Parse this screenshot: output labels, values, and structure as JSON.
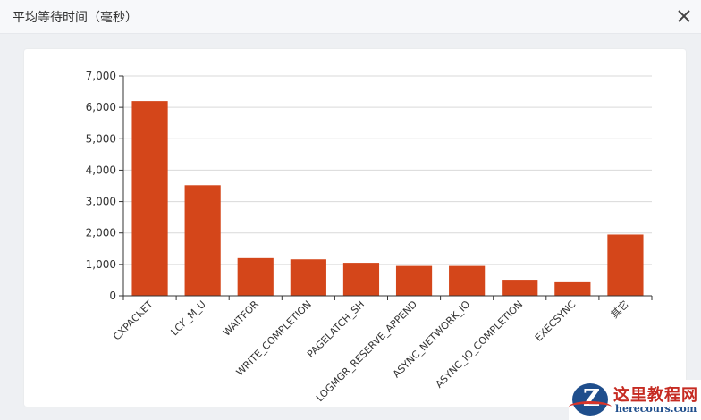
{
  "dialog": {
    "title": "平均等待时间（毫秒）"
  },
  "watermark": {
    "brand": "这里教程网",
    "url": "herecours.com"
  },
  "colors": {
    "bar": "#d4461a",
    "grid": "#d9d9d9",
    "axis": "#333333"
  },
  "chart_data": {
    "type": "bar",
    "title": "平均等待时间（毫秒）",
    "categories": [
      "CXPACKET",
      "LCK_M_U",
      "WAITFOR",
      "WRITE_COMPLETION",
      "PAGELATCH_SH",
      "LOGMGR_RESERVE_APPEND",
      "ASYNC_NETWORK_IO",
      "ASYNC_IO_COMPLETION",
      "EXECSYNC",
      "其它"
    ],
    "values": [
      6200,
      3520,
      1200,
      1160,
      1050,
      950,
      950,
      510,
      430,
      1950
    ],
    "ylim": [
      0,
      7000
    ],
    "yticks": [
      "0",
      "1,000",
      "2,000",
      "3,000",
      "4,000",
      "5,000",
      "6,000",
      "7,000"
    ],
    "grid": true,
    "xlabel": "",
    "ylabel": ""
  }
}
